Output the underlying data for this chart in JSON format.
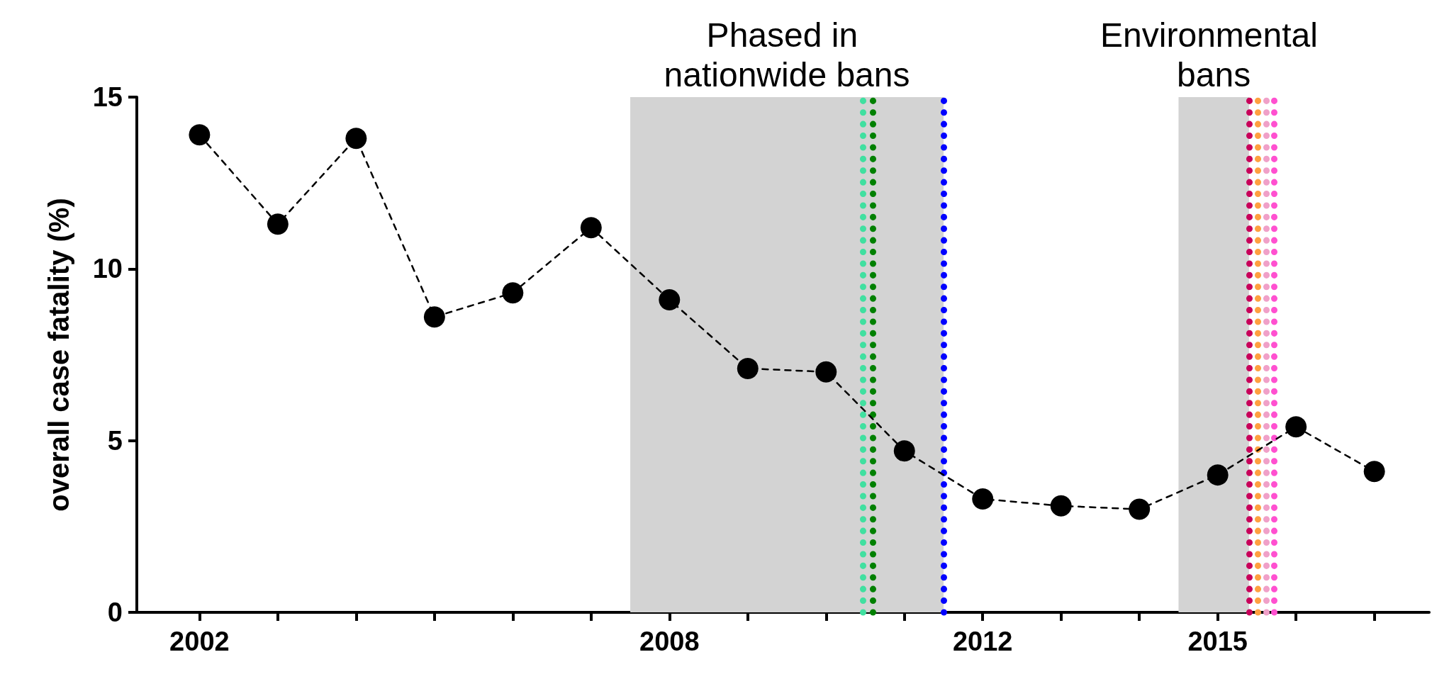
{
  "chart_data": {
    "type": "line",
    "ylabel": "overall case fatality (%)",
    "x": [
      2002,
      2003,
      2004,
      2005,
      2006,
      2007,
      2008,
      2009,
      2010,
      2011,
      2012,
      2013,
      2014,
      2015,
      2016,
      2017
    ],
    "series": [
      {
        "color": "#000000",
        "values": [
          13.9,
          11.3,
          13.8,
          8.6,
          9.3,
          11.2,
          9.1,
          7.1,
          7.0,
          4.7,
          3.3,
          3.1,
          3.0,
          4.0,
          5.4,
          4.1
        ]
      }
    ],
    "xlim": [
      2001.2,
      2017.7
    ],
    "xticks": [
      2002,
      {
        "value": 2003,
        "label": null
      },
      {
        "value": 2004,
        "label": null
      },
      {
        "value": 2005,
        "label": null
      },
      {
        "value": 2006,
        "label": null
      },
      {
        "value": 2007,
        "label": null
      },
      2008,
      {
        "value": 2009,
        "label": null
      },
      {
        "value": 2010,
        "label": null
      },
      {
        "value": 2011,
        "label": null
      },
      2012,
      {
        "value": 2013,
        "label": null
      },
      {
        "value": 2014,
        "label": null
      },
      2015,
      {
        "value": 2016,
        "label": null
      },
      {
        "value": 2017,
        "label": null
      }
    ],
    "ylim": [
      0,
      15
    ],
    "yticks": [
      0,
      5,
      10,
      15
    ],
    "bands": [
      {
        "axis": "x",
        "from": 2007.5,
        "to": 2011.5,
        "label": "Phased in nationwide bans",
        "color": "#d3d3d3"
      },
      {
        "axis": "x",
        "from": 2014.5,
        "to": 2015.4,
        "label": "Environmental bans",
        "color": "#d3d3d3"
      }
    ],
    "ref_lines": [
      {
        "axis": "x",
        "value": 2010.47,
        "color": "#40e0a0",
        "line_style": "dotted"
      },
      {
        "axis": "x",
        "value": 2010.6,
        "color": "#008000",
        "line_style": "dotted"
      },
      {
        "axis": "x",
        "value": 2011.5,
        "color": "#0000ff",
        "line_style": "dotted"
      },
      {
        "axis": "x",
        "value": 2015.4,
        "color": "#c8005a",
        "line_style": "dotted"
      },
      {
        "axis": "x",
        "value": 2015.51,
        "color": "#ffa040",
        "line_style": "dotted"
      },
      {
        "axis": "x",
        "value": 2015.62,
        "color": "#f0a0c8",
        "line_style": "dotted"
      },
      {
        "axis": "x",
        "value": 2015.72,
        "color": "#ff50d0",
        "line_style": "dotted"
      }
    ],
    "marker": "circle",
    "line_style": "dashed",
    "grid": false
  }
}
